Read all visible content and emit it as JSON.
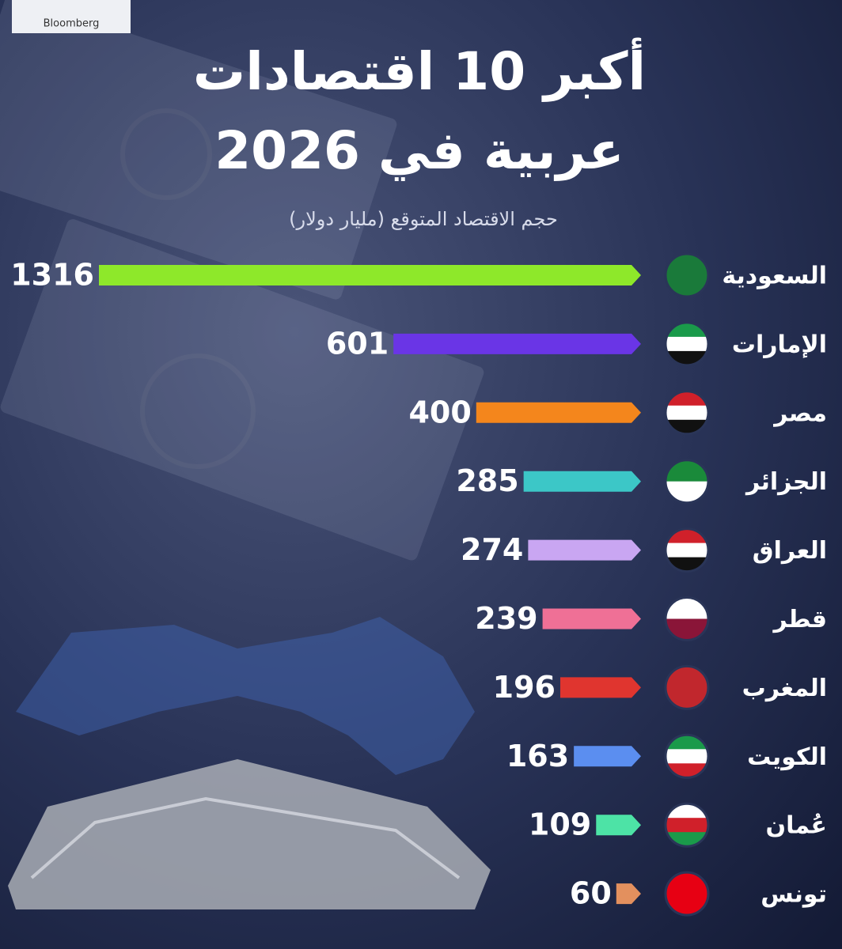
{
  "chart_data": {
    "type": "bar",
    "source": "Bloomberg",
    "title": [
      "أكبر 10 اقتصادات",
      "عربية في 2026"
    ],
    "subtitle": "حجم الاقتصاد المتوقع (مليار دولار)",
    "categories": [
      "السعودية",
      "الإمارات",
      "مصر",
      "الجزائر",
      "العراق",
      "قطر",
      "المغرب",
      "الكويت",
      "عُمان",
      "تونس"
    ],
    "values": [
      1316,
      601,
      400,
      285,
      274,
      239,
      196,
      163,
      109,
      60
    ],
    "colors": [
      "#8ee82a",
      "#6a35e6",
      "#f4861c",
      "#3cc7c7",
      "#c9a6f2",
      "#ef7096",
      "#e0352f",
      "#5b8ef0",
      "#4de3a6",
      "#e3905e"
    ]
  }
}
